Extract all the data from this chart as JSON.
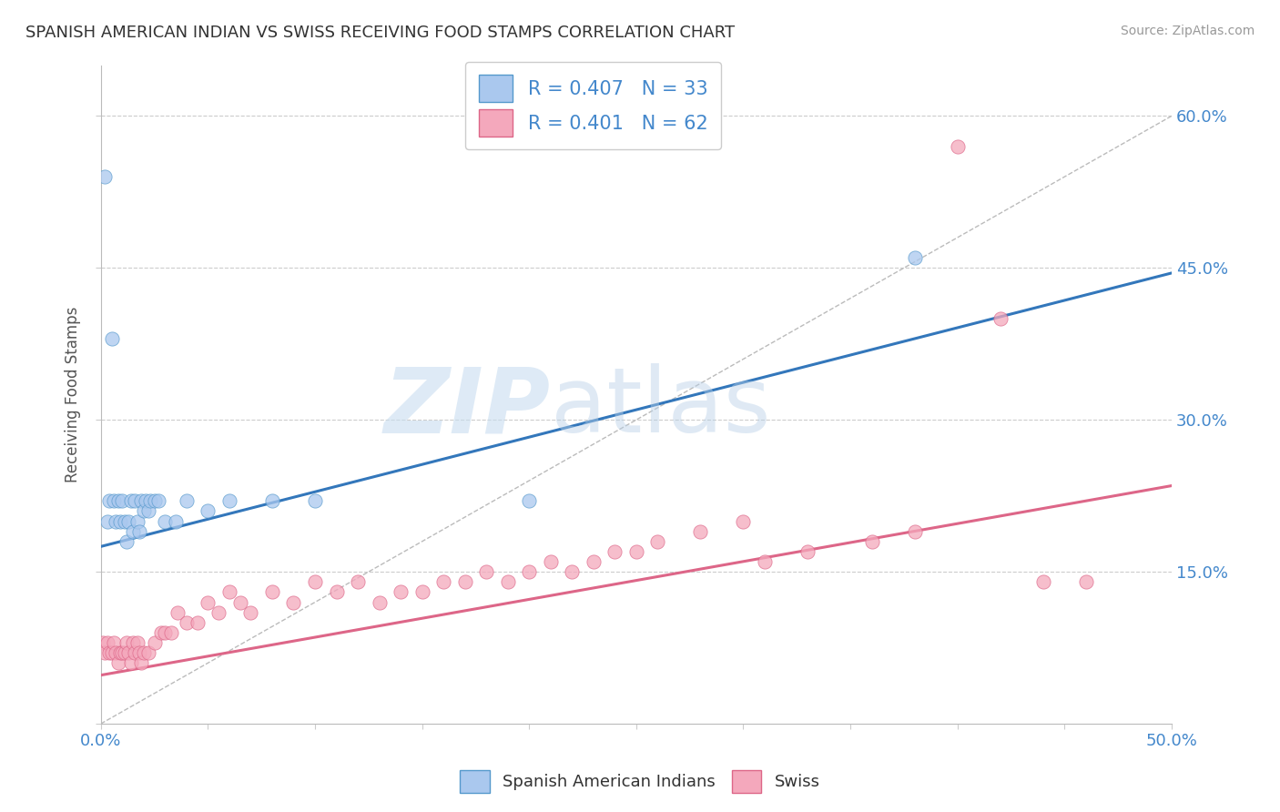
{
  "title": "SPANISH AMERICAN INDIAN VS SWISS RECEIVING FOOD STAMPS CORRELATION CHART",
  "source": "Source: ZipAtlas.com",
  "ylabel": "Receiving Food Stamps",
  "xlim": [
    0.0,
    0.5
  ],
  "ylim": [
    0.0,
    0.65
  ],
  "blue_R": 0.407,
  "blue_N": 33,
  "pink_R": 0.401,
  "pink_N": 62,
  "blue_color": "#aac8ee",
  "pink_color": "#f4a8bc",
  "blue_edge_color": "#5599cc",
  "pink_edge_color": "#dd6688",
  "blue_line_color": "#3377bb",
  "pink_line_color": "#dd6688",
  "blue_trend_x": [
    0.0,
    0.5
  ],
  "blue_trend_y": [
    0.175,
    0.445
  ],
  "pink_trend_x": [
    0.0,
    0.5
  ],
  "pink_trend_y": [
    0.048,
    0.235
  ],
  "diag_line_x": [
    0.0,
    0.5
  ],
  "diag_line_y": [
    0.0,
    0.6
  ],
  "blue_scatter_x": [
    0.002,
    0.003,
    0.004,
    0.005,
    0.006,
    0.007,
    0.008,
    0.009,
    0.01,
    0.011,
    0.012,
    0.013,
    0.014,
    0.015,
    0.016,
    0.017,
    0.018,
    0.019,
    0.02,
    0.021,
    0.022,
    0.023,
    0.025,
    0.027,
    0.03,
    0.035,
    0.04,
    0.05,
    0.06,
    0.08,
    0.1,
    0.2,
    0.38
  ],
  "blue_scatter_y": [
    0.54,
    0.2,
    0.22,
    0.38,
    0.22,
    0.2,
    0.22,
    0.2,
    0.22,
    0.2,
    0.18,
    0.2,
    0.22,
    0.19,
    0.22,
    0.2,
    0.19,
    0.22,
    0.21,
    0.22,
    0.21,
    0.22,
    0.22,
    0.22,
    0.2,
    0.2,
    0.22,
    0.21,
    0.22,
    0.22,
    0.22,
    0.22,
    0.46
  ],
  "pink_scatter_x": [
    0.001,
    0.002,
    0.003,
    0.004,
    0.005,
    0.006,
    0.007,
    0.008,
    0.009,
    0.01,
    0.011,
    0.012,
    0.013,
    0.014,
    0.015,
    0.016,
    0.017,
    0.018,
    0.019,
    0.02,
    0.022,
    0.025,
    0.028,
    0.03,
    0.033,
    0.036,
    0.04,
    0.045,
    0.05,
    0.055,
    0.06,
    0.065,
    0.07,
    0.08,
    0.09,
    0.1,
    0.11,
    0.12,
    0.13,
    0.14,
    0.15,
    0.16,
    0.17,
    0.18,
    0.19,
    0.2,
    0.21,
    0.22,
    0.23,
    0.24,
    0.25,
    0.26,
    0.28,
    0.3,
    0.31,
    0.33,
    0.36,
    0.38,
    0.4,
    0.42,
    0.44,
    0.46
  ],
  "pink_scatter_y": [
    0.08,
    0.07,
    0.08,
    0.07,
    0.07,
    0.08,
    0.07,
    0.06,
    0.07,
    0.07,
    0.07,
    0.08,
    0.07,
    0.06,
    0.08,
    0.07,
    0.08,
    0.07,
    0.06,
    0.07,
    0.07,
    0.08,
    0.09,
    0.09,
    0.09,
    0.11,
    0.1,
    0.1,
    0.12,
    0.11,
    0.13,
    0.12,
    0.11,
    0.13,
    0.12,
    0.14,
    0.13,
    0.14,
    0.12,
    0.13,
    0.13,
    0.14,
    0.14,
    0.15,
    0.14,
    0.15,
    0.16,
    0.15,
    0.16,
    0.17,
    0.17,
    0.18,
    0.19,
    0.2,
    0.16,
    0.17,
    0.18,
    0.19,
    0.57,
    0.4,
    0.14,
    0.14
  ],
  "figsize": [
    14.06,
    8.92
  ],
  "dpi": 100
}
